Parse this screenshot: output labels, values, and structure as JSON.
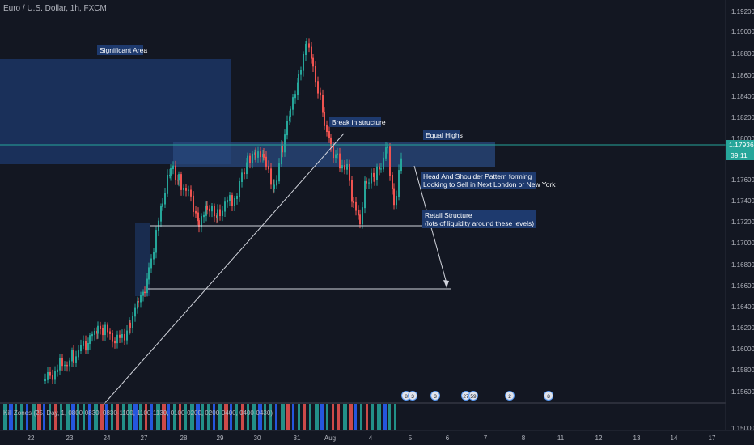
{
  "header": {
    "symbol_title": "Euro / U.S. Dollar, 1h, FXCM"
  },
  "price_axis": {
    "ticks": [
      "1.19200",
      "1.19000",
      "1.18800",
      "1.18600",
      "1.18400",
      "1.18200",
      "1.18000",
      "1.17600",
      "1.17400",
      "1.17200",
      "1.17000",
      "1.16800",
      "1.16600",
      "1.16400",
      "1.16200",
      "1.16000",
      "1.15800",
      "1.15600",
      "1.15000"
    ],
    "current_price": "1.17936",
    "countdown": "39:11"
  },
  "time_axis": {
    "ticks": [
      "22",
      "23",
      "24",
      "27",
      "28",
      "29",
      "30",
      "31",
      "Aug",
      "4",
      "5",
      "6",
      "7",
      "8",
      "11",
      "12",
      "13",
      "14",
      "17"
    ]
  },
  "annotations": {
    "significant_area": "Significant Area",
    "break_in_structure": "Break in structure",
    "equal_highs": "Equal Highs",
    "hs_line1": "Head And Shoulder Pattern forming",
    "hs_line2": "Looking to Sell in Next London or New York",
    "retail_line1": "Retail Structure",
    "retail_line2": "(lots of liquidity around these levels)"
  },
  "indicator": {
    "label": "Kill Zones (25, Day, 1, 0800-0830, 0830-1100, 1100-1130, 0100-0200, 0200-0400, 0400-0430)",
    "badges": [
      "8",
      "3",
      "3",
      "27",
      "59",
      "2",
      "8"
    ]
  },
  "colors": {
    "background": "#131722",
    "bull": "#26a69a",
    "bear": "#ef5350",
    "zone_fill": "#1e3a6e",
    "price_line": "#26a69a",
    "kz_blue": "#2962ff",
    "kz_green": "#26a69a",
    "kz_red": "#ef5350"
  }
}
